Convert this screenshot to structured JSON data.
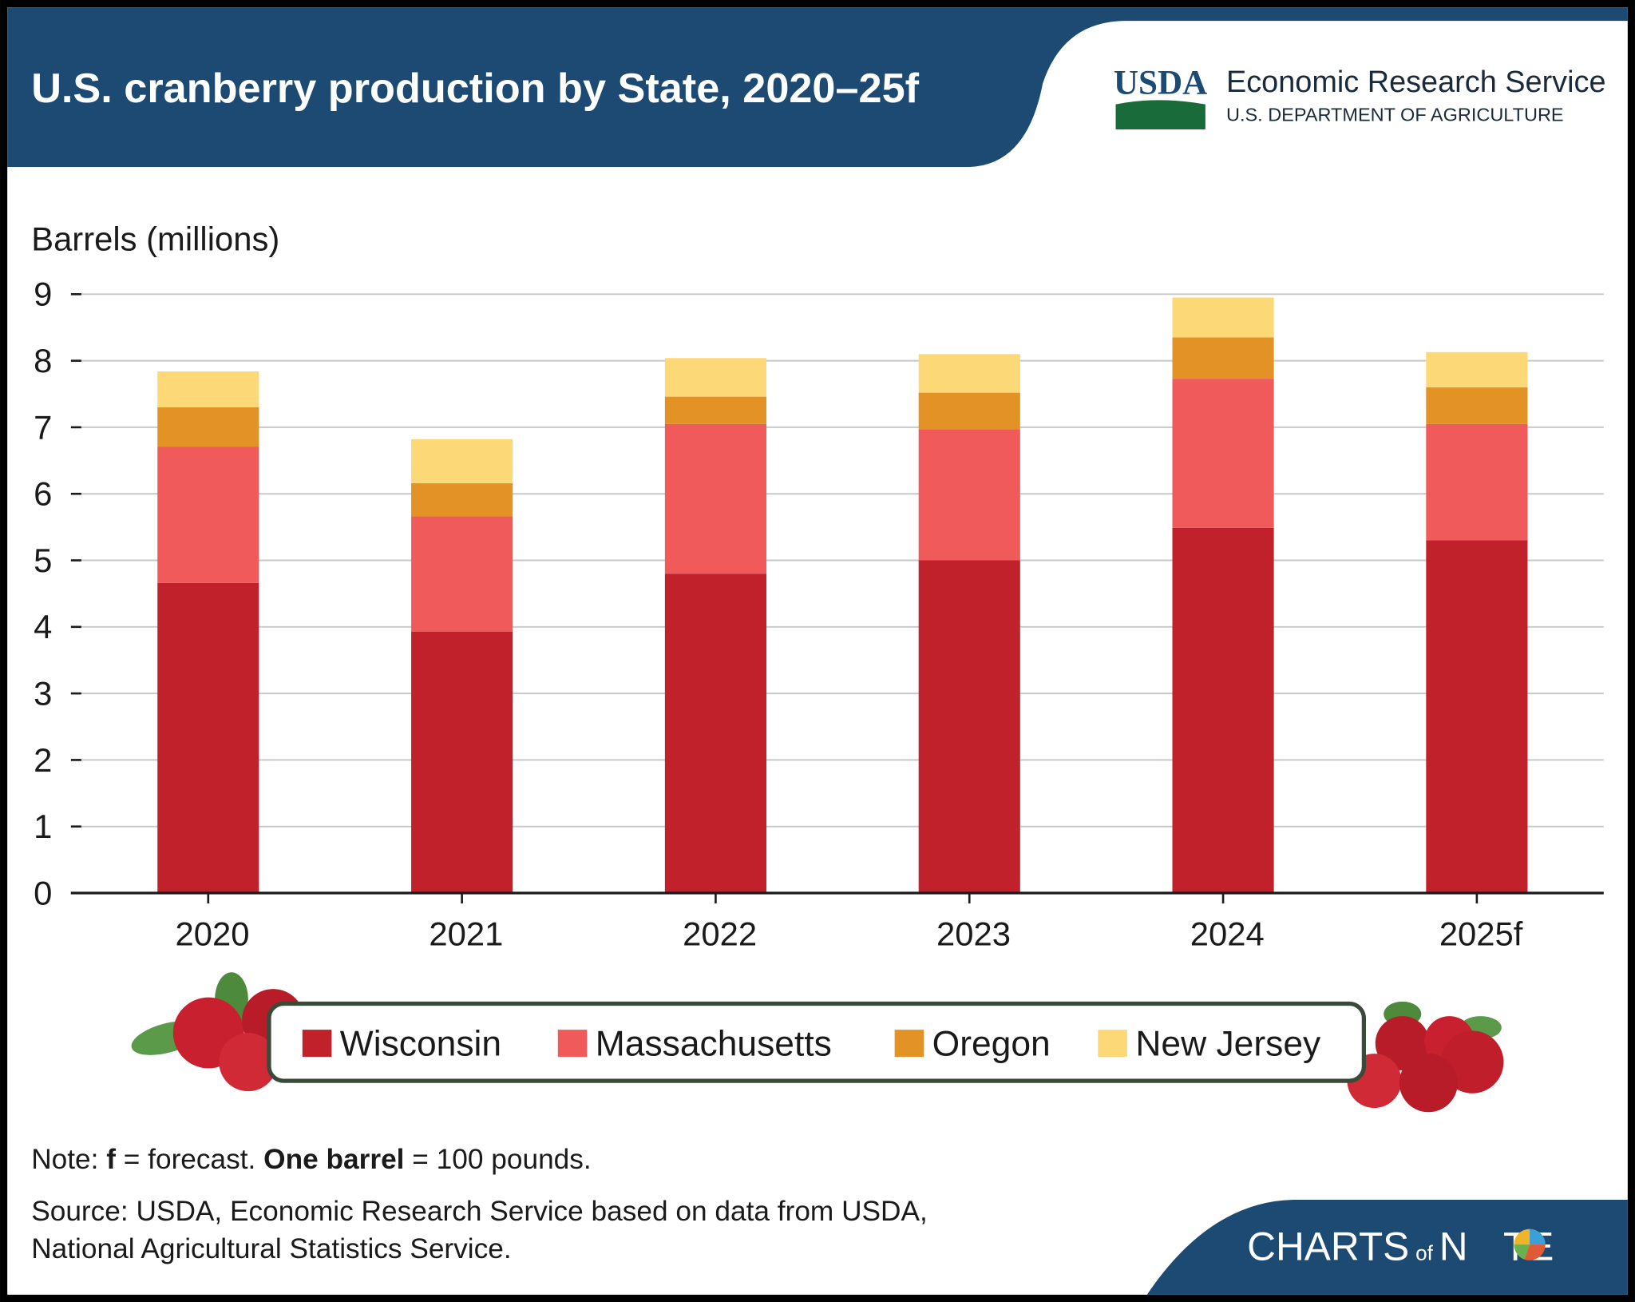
{
  "chart_data": {
    "type": "stacked_bar",
    "title": "U.S. cranberry production by State, 2020–25f",
    "logo": {
      "mark": "USDA",
      "agency": "Economic Research Service",
      "department": "U.S. DEPARTMENT OF AGRICULTURE"
    },
    "y_label": "Barrels (millions)",
    "categories": [
      "2020",
      "2021",
      "2022",
      "2023",
      "2024",
      "2025f"
    ],
    "series": [
      {
        "name": "Wisconsin",
        "color": "#c1212a",
        "values": [
          4.66,
          3.93,
          4.8,
          5.0,
          5.49,
          5.3
        ]
      },
      {
        "name": "Massachusetts",
        "color": "#f05a5a",
        "values": [
          2.05,
          1.73,
          2.25,
          1.97,
          2.24,
          1.75
        ]
      },
      {
        "name": "Oregon",
        "color": "#e39226",
        "values": [
          0.59,
          0.5,
          0.41,
          0.55,
          0.62,
          0.55
        ]
      },
      {
        "name": "New Jersey",
        "color": "#fdd876",
        "values": [
          0.54,
          0.66,
          0.58,
          0.58,
          0.6,
          0.53
        ]
      }
    ],
    "ylim": [
      0,
      9
    ],
    "yticks": [
      0,
      1,
      2,
      3,
      4,
      5,
      6,
      7,
      8,
      9
    ],
    "grid": true,
    "note": [
      "Note: ",
      "f",
      " = forecast. ",
      "One barrel",
      " = 100 pounds."
    ],
    "source": [
      "Source: USDA, Economic Research Service based on data from USDA,",
      "National Agricultural Statistics Service."
    ],
    "branding": [
      "CHARTS",
      "of",
      "N",
      "TE"
    ]
  }
}
